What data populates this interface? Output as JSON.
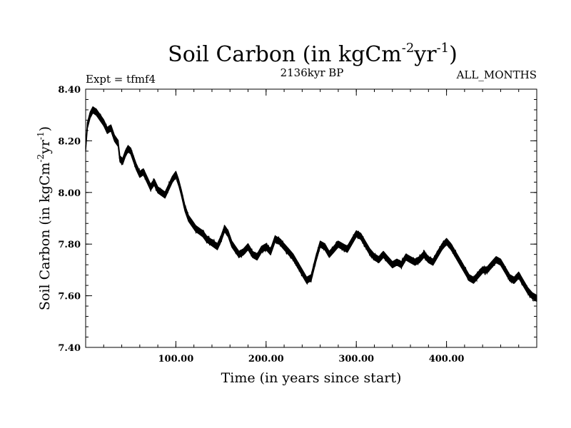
{
  "chart_data": {
    "type": "line",
    "title": {
      "main": "Soil Carbon (in kgCm",
      "exp1": "-2",
      "mid": "yr",
      "exp2": "-1",
      "close": ")"
    },
    "subtitle_left": "Expt = tfmf4",
    "subtitle_center": "2136kyr BP",
    "subtitle_right": "ALL_MONTHS",
    "xlabel": "Time (in years since start)",
    "ylabel": {
      "main": "Soil Carbon (in kgCm",
      "exp1": "-2",
      "mid": "yr",
      "exp2": "-1",
      "close": ")"
    },
    "xlim": [
      0,
      500
    ],
    "ylim": [
      7.4,
      8.4
    ],
    "x_ticks": [
      100,
      200,
      300,
      400
    ],
    "x_tick_labels": [
      "100.00",
      "200.00",
      "300.00",
      "400.00"
    ],
    "y_ticks": [
      7.4,
      7.6,
      7.8,
      8.0,
      8.2,
      8.4
    ],
    "y_tick_labels": [
      "7.40",
      "7.60",
      "7.80",
      "8.00",
      "8.20",
      "8.40"
    ],
    "x_minor_step": 20,
    "y_minor_step": 0.04,
    "line_color": "#000000",
    "band_half_width": 0.012,
    "series": [
      {
        "name": "Soil Carbon",
        "x": [
          0,
          2,
          5,
          8,
          12,
          16,
          20,
          24,
          28,
          32,
          36,
          38,
          41,
          44,
          47,
          50,
          53,
          56,
          60,
          64,
          68,
          72,
          76,
          80,
          84,
          88,
          92,
          96,
          100,
          103,
          106,
          110,
          114,
          118,
          122,
          126,
          130,
          134,
          138,
          142,
          146,
          150,
          154,
          158,
          162,
          166,
          170,
          175,
          180,
          185,
          190,
          195,
          200,
          205,
          210,
          215,
          220,
          225,
          230,
          235,
          240,
          245,
          250,
          255,
          260,
          265,
          270,
          275,
          280,
          285,
          290,
          295,
          300,
          305,
          310,
          315,
          320,
          325,
          330,
          335,
          340,
          345,
          350,
          355,
          360,
          365,
          370,
          375,
          380,
          385,
          390,
          395,
          400,
          405,
          410,
          415,
          420,
          425,
          430,
          435,
          440,
          445,
          450,
          455,
          460,
          465,
          470,
          475,
          480,
          485,
          490,
          495,
          500
        ],
        "y": [
          8.17,
          8.26,
          8.3,
          8.32,
          8.31,
          8.29,
          8.27,
          8.24,
          8.25,
          8.21,
          8.19,
          8.13,
          8.12,
          8.15,
          8.17,
          8.16,
          8.13,
          8.1,
          8.07,
          8.08,
          8.05,
          8.02,
          8.04,
          8.01,
          8.0,
          7.99,
          8.02,
          8.05,
          8.07,
          8.04,
          8.0,
          7.94,
          7.9,
          7.88,
          7.86,
          7.85,
          7.84,
          7.82,
          7.81,
          7.8,
          7.79,
          7.82,
          7.86,
          7.84,
          7.8,
          7.78,
          7.76,
          7.77,
          7.79,
          7.76,
          7.75,
          7.78,
          7.79,
          7.77,
          7.82,
          7.81,
          7.79,
          7.77,
          7.75,
          7.72,
          7.69,
          7.66,
          7.67,
          7.74,
          7.8,
          7.79,
          7.76,
          7.78,
          7.8,
          7.79,
          7.78,
          7.81,
          7.84,
          7.83,
          7.8,
          7.77,
          7.75,
          7.74,
          7.76,
          7.74,
          7.72,
          7.73,
          7.72,
          7.75,
          7.74,
          7.73,
          7.74,
          7.76,
          7.74,
          7.73,
          7.76,
          7.79,
          7.81,
          7.79,
          7.76,
          7.73,
          7.7,
          7.67,
          7.66,
          7.68,
          7.7,
          7.7,
          7.72,
          7.74,
          7.73,
          7.7,
          7.67,
          7.66,
          7.68,
          7.65,
          7.62,
          7.6,
          7.59
        ]
      }
    ]
  }
}
